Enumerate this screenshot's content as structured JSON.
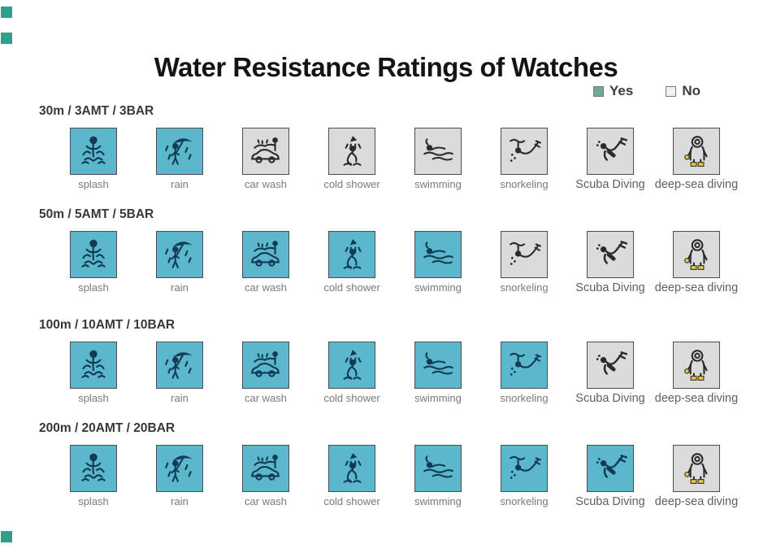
{
  "title": "Water Resistance Ratings of Watches",
  "legend": {
    "yes_label": "Yes",
    "no_label": "No"
  },
  "colors": {
    "yes_cell": "#5BB7CC",
    "no_cell": "#DBDBDB",
    "icon_on_yes": "#123A52",
    "icon_on_no": "#2B2B2B",
    "legend_yes": "#6FA99C",
    "legend_no": "#F1F1F1",
    "deep_sea_accent": "#E9C63B",
    "corner_decoration": "#2EA18C"
  },
  "activities": [
    {
      "id": "splash",
      "label": "splash",
      "icon": "splash-icon"
    },
    {
      "id": "rain",
      "label": "rain",
      "icon": "rain-umbrella-icon"
    },
    {
      "id": "car-wash",
      "label": "car wash",
      "icon": "car-wash-icon"
    },
    {
      "id": "cold-shower",
      "label": "cold shower",
      "icon": "cold-shower-icon"
    },
    {
      "id": "swimming",
      "label": "swimming",
      "icon": "swimmer-icon"
    },
    {
      "id": "snorkeling",
      "label": "snorkeling",
      "icon": "snorkeler-icon"
    },
    {
      "id": "scuba-diving",
      "label": "Scuba Diving",
      "icon": "scuba-diver-icon"
    },
    {
      "id": "deep-sea-diving",
      "label": "deep-sea diving",
      "icon": "deep-sea-diver-icon"
    }
  ],
  "ratings": [
    {
      "label": "30m / 3AMT / 3BAR",
      "allowed": [
        "Yes",
        "Yes",
        "No",
        "No",
        "No",
        "No",
        "No",
        "No"
      ]
    },
    {
      "label": "50m / 5AMT / 5BAR",
      "allowed": [
        "Yes",
        "Yes",
        "Yes",
        "Yes",
        "Yes",
        "No",
        "No",
        "No"
      ]
    },
    {
      "label": "100m / 10AMT / 10BAR",
      "allowed": [
        "Yes",
        "Yes",
        "Yes",
        "Yes",
        "Yes",
        "Yes",
        "No",
        "No"
      ]
    },
    {
      "label": "200m / 20AMT / 20BAR",
      "allowed": [
        "Yes",
        "Yes",
        "Yes",
        "Yes",
        "Yes",
        "Yes",
        "Yes",
        "No"
      ]
    }
  ]
}
